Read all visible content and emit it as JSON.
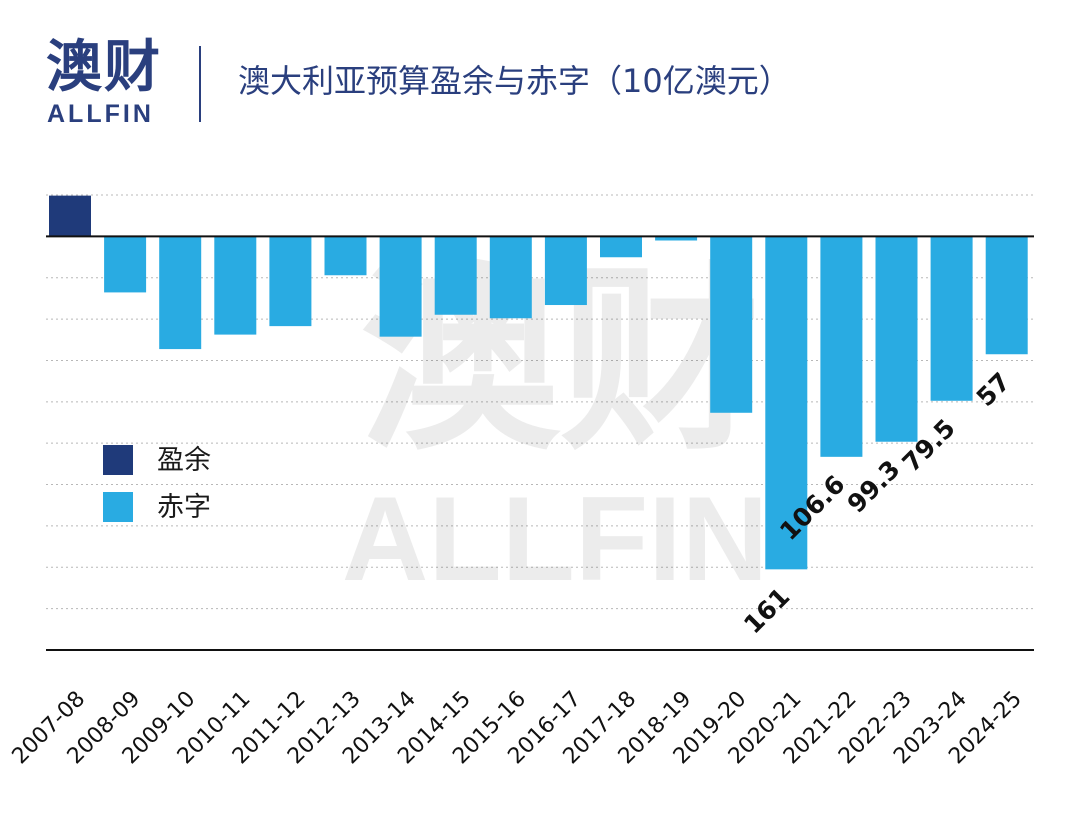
{
  "header": {
    "logo_cn": "澳财",
    "logo_en": "ALLFIN",
    "title": "澳大利亚预算盈余与赤字（10亿澳元）"
  },
  "watermark": {
    "cn": "澳财",
    "en": "ALLFIN"
  },
  "colors": {
    "brand": "#2a3f7e",
    "surplus": "#1f3a7a",
    "deficit": "#29abe2",
    "label": "#111111"
  },
  "legend": [
    {
      "label": "盈余",
      "color": "#1f3a7a"
    },
    {
      "label": "赤字",
      "color": "#29abe2"
    }
  ],
  "chart_data": {
    "type": "bar",
    "categories": [
      "2007-08",
      "2008-09",
      "2009-10",
      "2010-11",
      "2011-12",
      "2012-13",
      "2013-14",
      "2014-15",
      "2015-16",
      "2016-17",
      "2017-18",
      "2018-19",
      "2019-20",
      "2020-21",
      "2021-22",
      "2022-23",
      "2023-24",
      "2024-25"
    ],
    "values": [
      19.7,
      -27.1,
      -54.5,
      -47.5,
      -43.4,
      -18.8,
      -48.5,
      -37.9,
      -39.6,
      -33.2,
      -10.1,
      -2.0,
      -85.3,
      -161,
      -106.6,
      -99.3,
      -79.5,
      -57
    ],
    "data_labels": [
      null,
      null,
      null,
      null,
      null,
      null,
      null,
      null,
      null,
      null,
      null,
      null,
      null,
      "161",
      "106.6",
      "99.3",
      "79.5",
      "57"
    ],
    "title": "澳大利亚预算盈余与赤字（10亿澳元）",
    "xlabel": "",
    "ylabel": "",
    "ylim": [
      -200,
      20
    ],
    "grid": true,
    "legend_position": "left"
  }
}
